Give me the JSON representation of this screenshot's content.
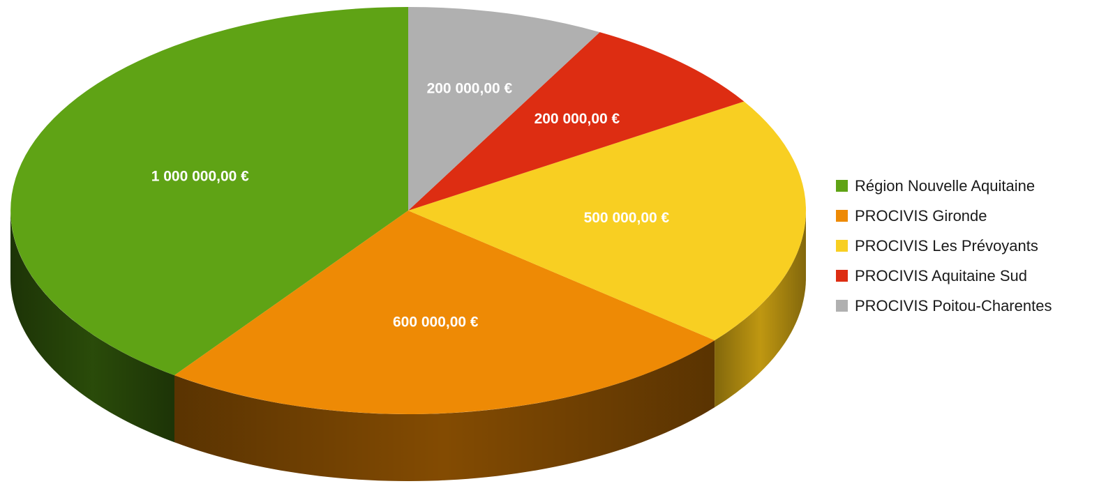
{
  "chart_data": {
    "type": "pie",
    "style": "3d",
    "title": "",
    "legend_position": "right",
    "slices": [
      {
        "name": "Région Nouvelle Aquitaine",
        "value": 1000000,
        "label": "1 000 000,00 €",
        "color": "#5fa315",
        "side_color": "#2c4f0a"
      },
      {
        "name": "PROCIVIS Gironde",
        "value": 600000,
        "label": "600 000,00 €",
        "color": "#ee8a05",
        "side_color": "#8a4f02"
      },
      {
        "name": "PROCIVIS Les Prévoyants",
        "value": 500000,
        "label": "500 000,00 €",
        "color": "#f8cf22",
        "side_color": "#c99f12"
      },
      {
        "name": "PROCIVIS Aquitaine Sud",
        "value": 200000,
        "label": "200 000,00 €",
        "color": "#dd2d12",
        "side_color": "#8a1a0a"
      },
      {
        "name": "PROCIVIS Poitou-Charentes",
        "value": 200000,
        "label": "200 000,00 €",
        "color": "#b0b0b0",
        "side_color": "#6f6f6f"
      }
    ]
  }
}
